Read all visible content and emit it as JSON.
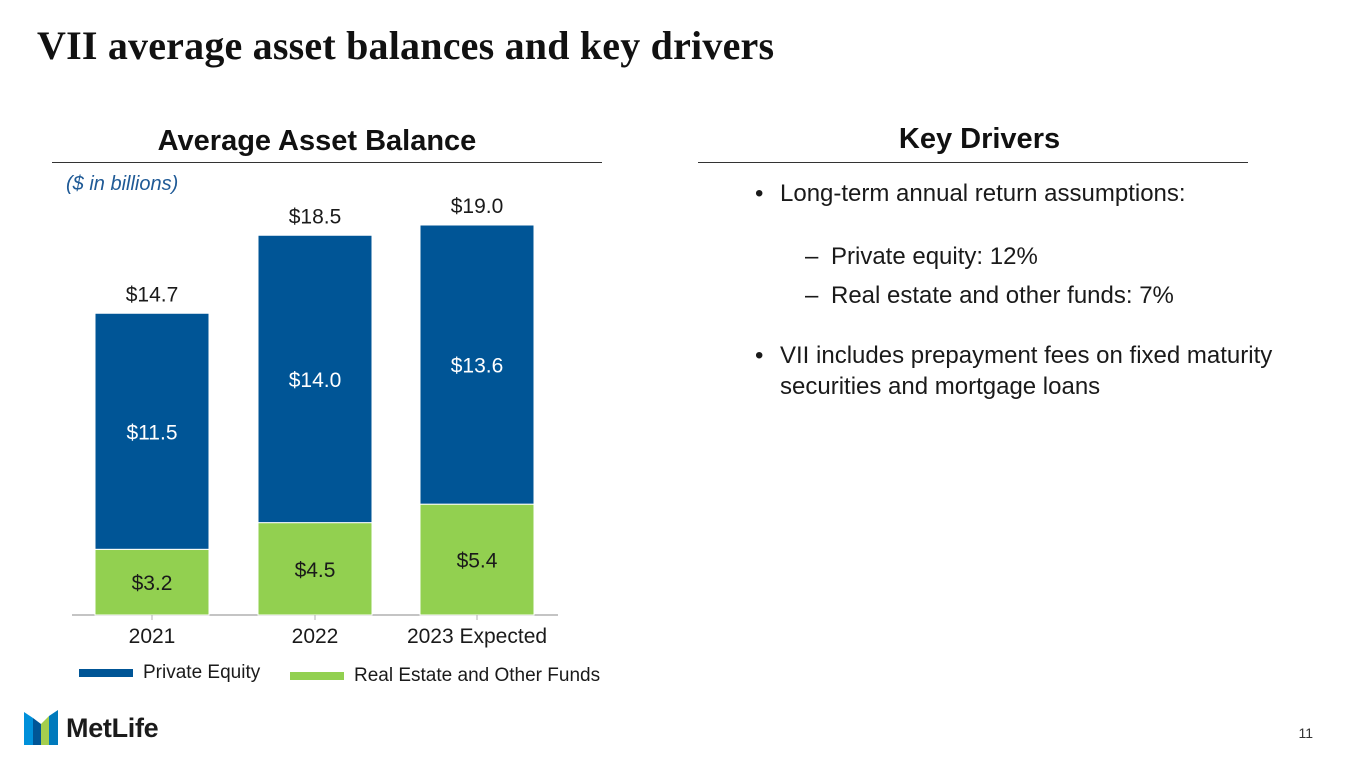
{
  "slide": {
    "title": "VII average asset balances and key drivers",
    "page_number": "11"
  },
  "left_panel": {
    "heading": "Average Asset Balance",
    "units_note": "($ in billions)"
  },
  "right_panel": {
    "heading": "Key Drivers",
    "bullets": [
      {
        "text": "Long-term annual return assumptions:",
        "sub": [
          "Private equity: 12%",
          "Real estate and other funds: 7%"
        ]
      },
      {
        "text": "VII includes prepayment fees on fixed maturity securities and mortgage loans",
        "sub": []
      }
    ]
  },
  "logo": {
    "text": "MetLife",
    "icon": "metlife-m-icon"
  },
  "colors": {
    "private_equity": "#005596",
    "real_estate": "#92d050"
  },
  "chart_data": {
    "type": "bar",
    "stacked": true,
    "title": "Average Asset Balance",
    "units": "($ in billions)",
    "categories": [
      "2021",
      "2022",
      "2023 Expected"
    ],
    "series": [
      {
        "name": "Real Estate and Other Funds",
        "values": [
          3.2,
          4.5,
          5.4
        ],
        "labels": [
          "$3.2",
          "$4.5",
          "$5.4"
        ]
      },
      {
        "name": "Private Equity",
        "values": [
          11.5,
          14.0,
          13.6
        ],
        "labels": [
          "$11.5",
          "$14.0",
          "$13.6"
        ]
      }
    ],
    "totals": [
      14.7,
      18.5,
      19.0
    ],
    "total_labels": [
      "$14.7",
      "$18.5",
      "$19.0"
    ],
    "ylim": [
      0,
      19.0
    ],
    "legend": [
      "Private Equity",
      "Real Estate and Other Funds"
    ],
    "legend_position": "bottom",
    "grid": false
  }
}
